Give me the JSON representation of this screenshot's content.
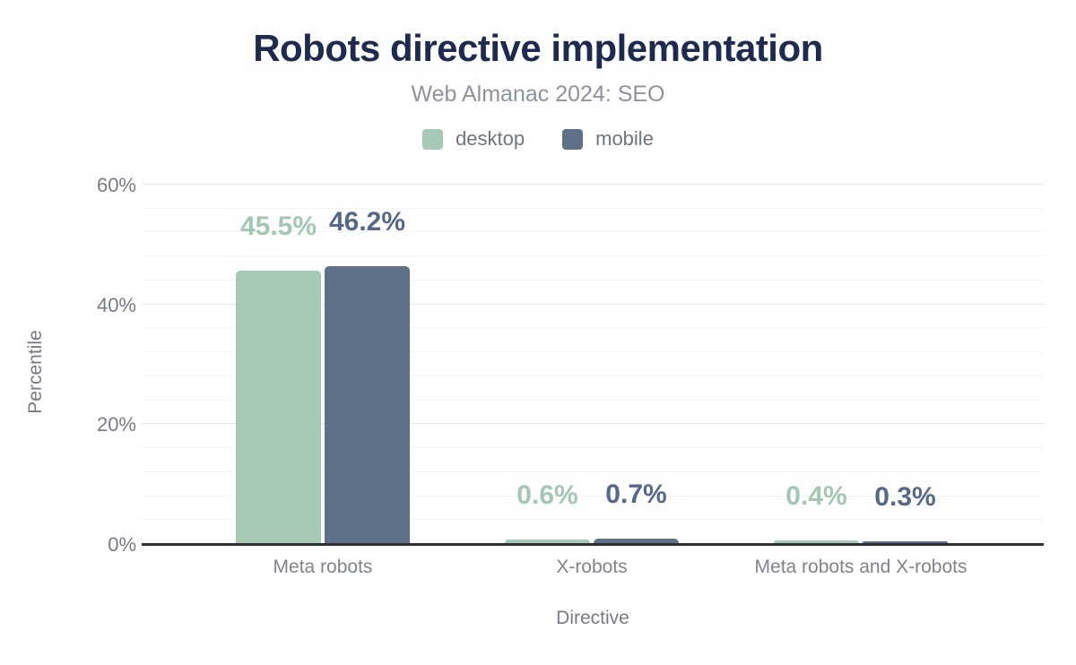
{
  "header": {
    "title": "Robots directive implementation",
    "subtitle": "Web Almanac 2024: SEO"
  },
  "chart_data": {
    "type": "bar",
    "title": "Robots directive implementation",
    "subtitle": "Web Almanac 2024: SEO",
    "categories": [
      "Meta robots",
      "X-robots",
      "Meta robots and X-robots"
    ],
    "series": [
      {
        "name": "desktop",
        "color": "#a5c9b5",
        "label_color": "#a2c7b2",
        "values": [
          45.5,
          0.6,
          0.4
        ]
      },
      {
        "name": "mobile",
        "color": "#5f7189",
        "label_color": "#56688a",
        "values": [
          46.2,
          0.7,
          0.3
        ]
      }
    ],
    "value_labels": [
      [
        "45.5%",
        "0.6%",
        "0.4%"
      ],
      [
        "46.2%",
        "0.7%",
        "0.3%"
      ]
    ],
    "xlabel": "Directive",
    "ylabel": "Percentile",
    "y_ticks": [
      {
        "value": 0,
        "label": "0%"
      },
      {
        "value": 20,
        "label": "20%"
      },
      {
        "value": 40,
        "label": "40%"
      },
      {
        "value": 60,
        "label": "60%"
      }
    ],
    "ylim": [
      0,
      60
    ],
    "grid": {
      "major_step": 20,
      "minor_step": 4,
      "grid_on": true
    },
    "legend_position": "top",
    "value_suffix": "%"
  },
  "colors": {
    "title": "#1e2b4e",
    "subtitle": "#8e939b",
    "axis_line": "#2e3033",
    "tick_text": "#767b83",
    "desktop": "#a5c9b5",
    "mobile": "#5f7189",
    "background": "#ffffff"
  }
}
